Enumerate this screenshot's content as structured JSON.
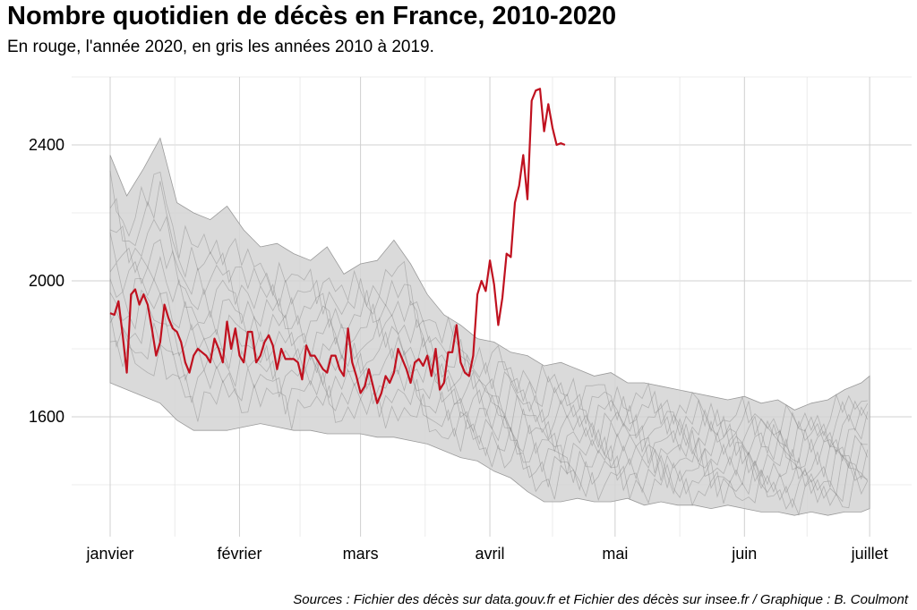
{
  "chart_data": {
    "type": "line",
    "title": "Nombre quotidien de décès en France, 2010-2020",
    "subtitle": "En rouge, l'année 2020, en gris les années 2010 à 2019.",
    "caption": "Sources : Fichier des décès sur data.gouv.fr et Fichier des décès sur insee.fr / Graphique : B. Coulmont",
    "x_axis": {
      "ticks": [
        "janvier",
        "février",
        "mars",
        "avril",
        "mai",
        "juin",
        "juillet"
      ],
      "tick_days": [
        0,
        31,
        60,
        91,
        121,
        152,
        182
      ]
    },
    "y_axis": {
      "ticks": [
        1600,
        2000,
        2400
      ],
      "ylim": [
        1400,
        2600
      ]
    },
    "grid": true,
    "colors": {
      "series_2020": "#c0111f",
      "band_fill": "#d4d4d4",
      "band_line": "#808080",
      "grid": "#dedede"
    },
    "range_2010_2019": {
      "day": [
        0,
        4,
        8,
        12,
        16,
        20,
        24,
        28,
        32,
        36,
        40,
        44,
        48,
        52,
        56,
        60,
        64,
        68,
        72,
        76,
        80,
        84,
        88,
        92,
        96,
        100,
        104,
        108,
        112,
        116,
        120,
        124,
        128,
        132,
        136,
        140,
        144,
        148,
        152,
        156,
        160,
        164,
        168,
        172,
        176,
        180,
        182
      ],
      "max": [
        2370,
        2250,
        2330,
        2420,
        2230,
        2200,
        2180,
        2220,
        2150,
        2100,
        2110,
        2080,
        2060,
        2100,
        2020,
        2050,
        2060,
        2120,
        2050,
        1960,
        1900,
        1870,
        1830,
        1820,
        1790,
        1780,
        1750,
        1760,
        1740,
        1720,
        1730,
        1700,
        1700,
        1690,
        1680,
        1670,
        1660,
        1650,
        1660,
        1640,
        1650,
        1620,
        1640,
        1650,
        1680,
        1700,
        1720
      ],
      "min": [
        1700,
        1680,
        1660,
        1640,
        1590,
        1560,
        1560,
        1560,
        1570,
        1580,
        1570,
        1560,
        1560,
        1550,
        1550,
        1550,
        1540,
        1540,
        1530,
        1520,
        1500,
        1480,
        1470,
        1440,
        1420,
        1380,
        1350,
        1350,
        1360,
        1350,
        1350,
        1360,
        1340,
        1350,
        1340,
        1340,
        1330,
        1340,
        1330,
        1320,
        1320,
        1310,
        1320,
        1310,
        1320,
        1320,
        1330
      ]
    },
    "series_2020": {
      "day": [
        0,
        1,
        2,
        3,
        4,
        5,
        6,
        7,
        8,
        9,
        10,
        11,
        12,
        13,
        14,
        15,
        16,
        17,
        18,
        19,
        20,
        21,
        22,
        23,
        24,
        25,
        26,
        27,
        28,
        29,
        30,
        31,
        32,
        33,
        34,
        35,
        36,
        37,
        38,
        39,
        40,
        41,
        42,
        43,
        44,
        45,
        46,
        47,
        48,
        49,
        50,
        51,
        52,
        53,
        54,
        55,
        56,
        57,
        58,
        59,
        60,
        61,
        62,
        63,
        64,
        65,
        66,
        67,
        68,
        69,
        70,
        71,
        72,
        73,
        74,
        75,
        76,
        77,
        78,
        79,
        80,
        81,
        82,
        83,
        84,
        85,
        86,
        87,
        88,
        89,
        90,
        91,
        92,
        93,
        94,
        95,
        96,
        97,
        98,
        99
      ],
      "values": [
        1905,
        1900,
        1940,
        1840,
        1730,
        1960,
        1975,
        1930,
        1960,
        1930,
        1860,
        1780,
        1820,
        1930,
        1890,
        1860,
        1850,
        1820,
        1760,
        1730,
        1780,
        1800,
        1790,
        1780,
        1760,
        1830,
        1800,
        1760,
        1880,
        1800,
        1860,
        1780,
        1760,
        1850,
        1850,
        1760,
        1780,
        1820,
        1840,
        1810,
        1740,
        1800,
        1770,
        1770,
        1770,
        1760,
        1710,
        1810,
        1780,
        1780,
        1760,
        1740,
        1730,
        1780,
        1780,
        1740,
        1720,
        1860,
        1760,
        1720,
        1670,
        1690,
        1740,
        1690,
        1640,
        1670,
        1720,
        1700,
        1730,
        1800,
        1770,
        1740,
        1700,
        1760,
        1770,
        1750,
        1780,
        1720,
        1800,
        1680,
        1700,
        1790,
        1790,
        1870,
        1760,
        1730,
        1720,
        1780,
        1960,
        2000,
        1970,
        2060,
        1990,
        1870,
        1950,
        2080,
        2070,
        2230,
        2280,
        2370
      ]
    },
    "series_2020_tail": {
      "day": [
        99,
        100,
        101,
        102,
        103,
        104,
        105,
        106,
        107,
        108,
        109
      ],
      "values": [
        2370,
        2240,
        2530,
        2560,
        2565,
        2440,
        2520,
        2450,
        2400,
        2405,
        2400
      ]
    }
  }
}
